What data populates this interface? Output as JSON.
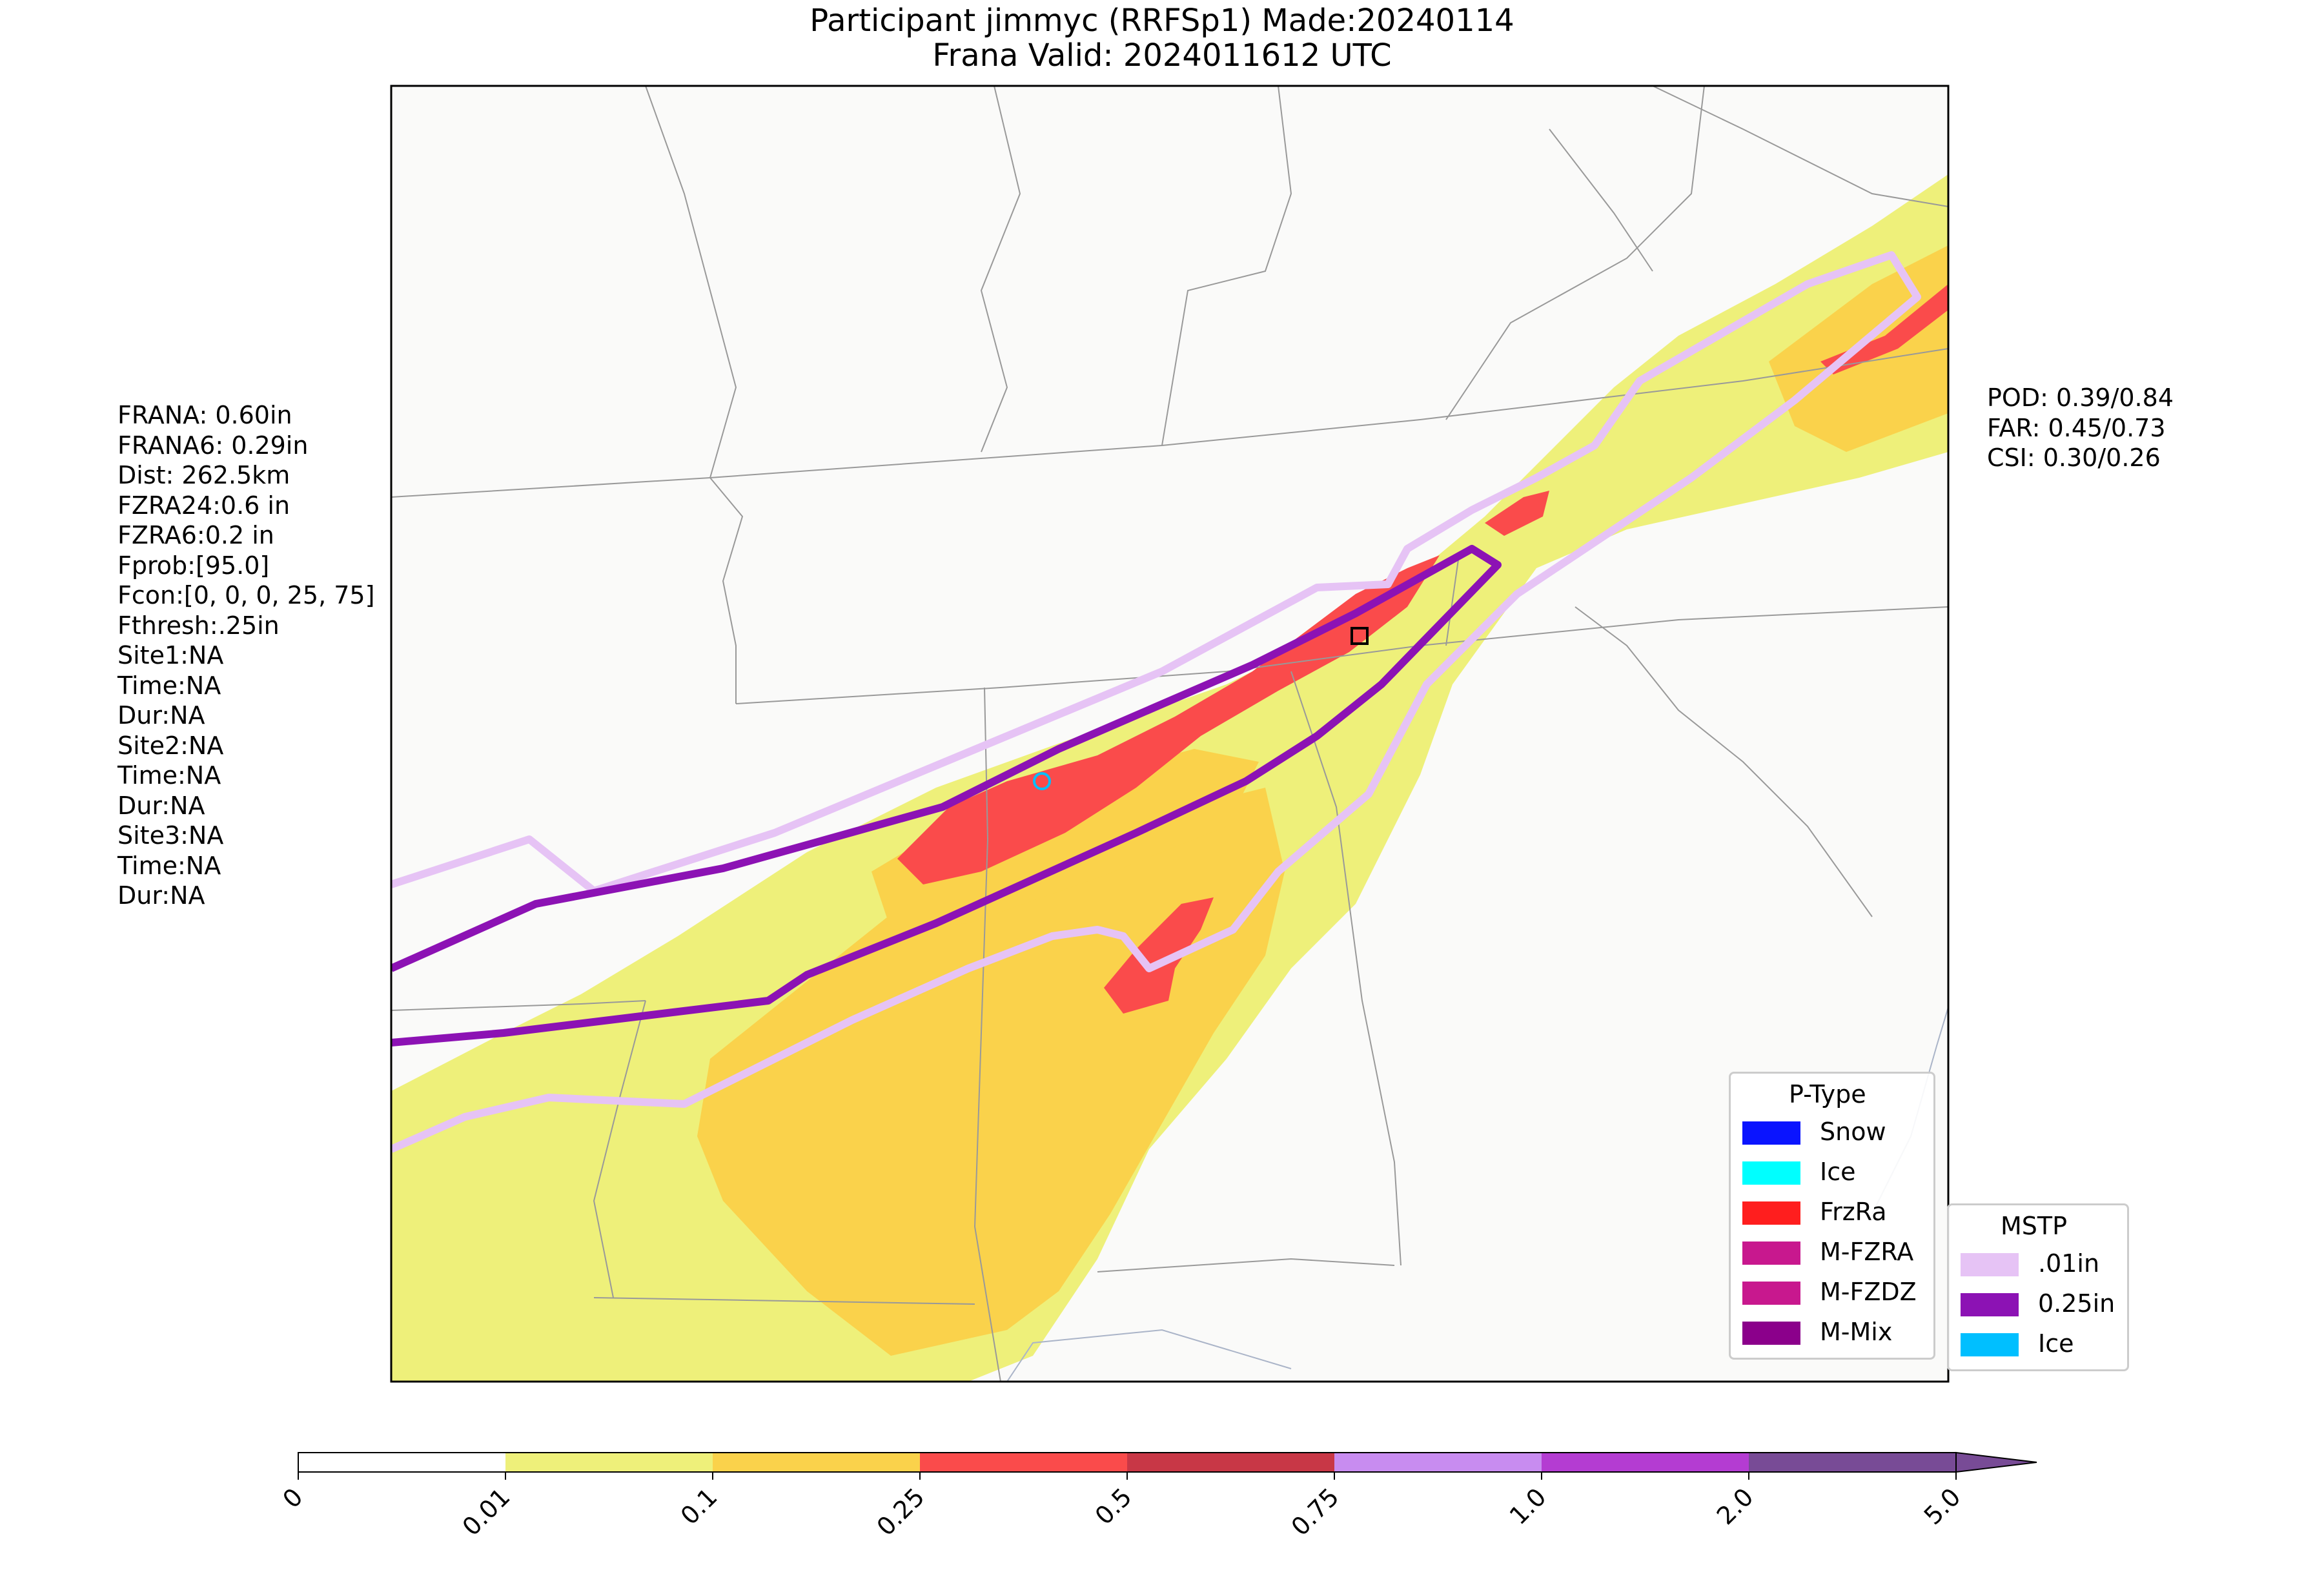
{
  "title": {
    "line1": "Participant jimmyc (RRFSp1) Made:20240114",
    "line2": "Frana Valid: 2024011612 UTC"
  },
  "left_stats": [
    "FRANA: 0.60in",
    "FRANA6: 0.29in",
    "Dist: 262.5km",
    "FZRA24:0.6 in",
    "FZRA6:0.2 in",
    "Fprob:[95.0]",
    "Fcon:[0, 0, 0, 25, 75]",
    "Fthresh:.25in",
    "Site1:NA",
    "Time:NA",
    "Dur:NA",
    "Site2:NA",
    "Time:NA",
    "Dur:NA",
    "Site3:NA",
    "Time:NA",
    "Dur:NA"
  ],
  "right_stats": [
    "POD: 0.39/0.84",
    "FAR: 0.45/0.73",
    "CSI: 0.30/0.26"
  ],
  "ptype_legend": {
    "title": "P-Type",
    "items": [
      {
        "label": "Snow",
        "color": "#0a14ff"
      },
      {
        "label": "Ice",
        "color": "#00ffff"
      },
      {
        "label": "FrzRa",
        "color": "#ff1e1e"
      },
      {
        "label": "M-FZRA",
        "color": "#c8188e"
      },
      {
        "label": "M-FZDZ",
        "color": "#c8188e"
      },
      {
        "label": "M-Mix",
        "color": "#8b008b"
      }
    ]
  },
  "mstp_legend": {
    "title": "MSTP",
    "items": [
      {
        "label": ".01in",
        "color": "#e6c3f5"
      },
      {
        "label": "0.25in",
        "color": "#8c12b4"
      },
      {
        "label": "Ice",
        "color": "#00bfff"
      }
    ]
  },
  "colorbar": {
    "ticks": [
      "0",
      "0.01",
      "0.1",
      "0.25",
      "0.5",
      "0.75",
      "1.0",
      "2.0",
      "5.0"
    ],
    "colors": [
      "#ffffff",
      "#eef07a",
      "#fad24b",
      "#fa4b4b",
      "#c83746",
      "#c88cf0",
      "#b43cd2",
      "#784b96"
    ]
  },
  "colors": {
    "light_precip": "#eef07a",
    "moderate_precip": "#fad24b",
    "frzra_area": "#fa4b4b",
    "contour_01": "#e6c3f5",
    "contour_025": "#8c12b4",
    "ice_marker": "#00bfff"
  }
}
